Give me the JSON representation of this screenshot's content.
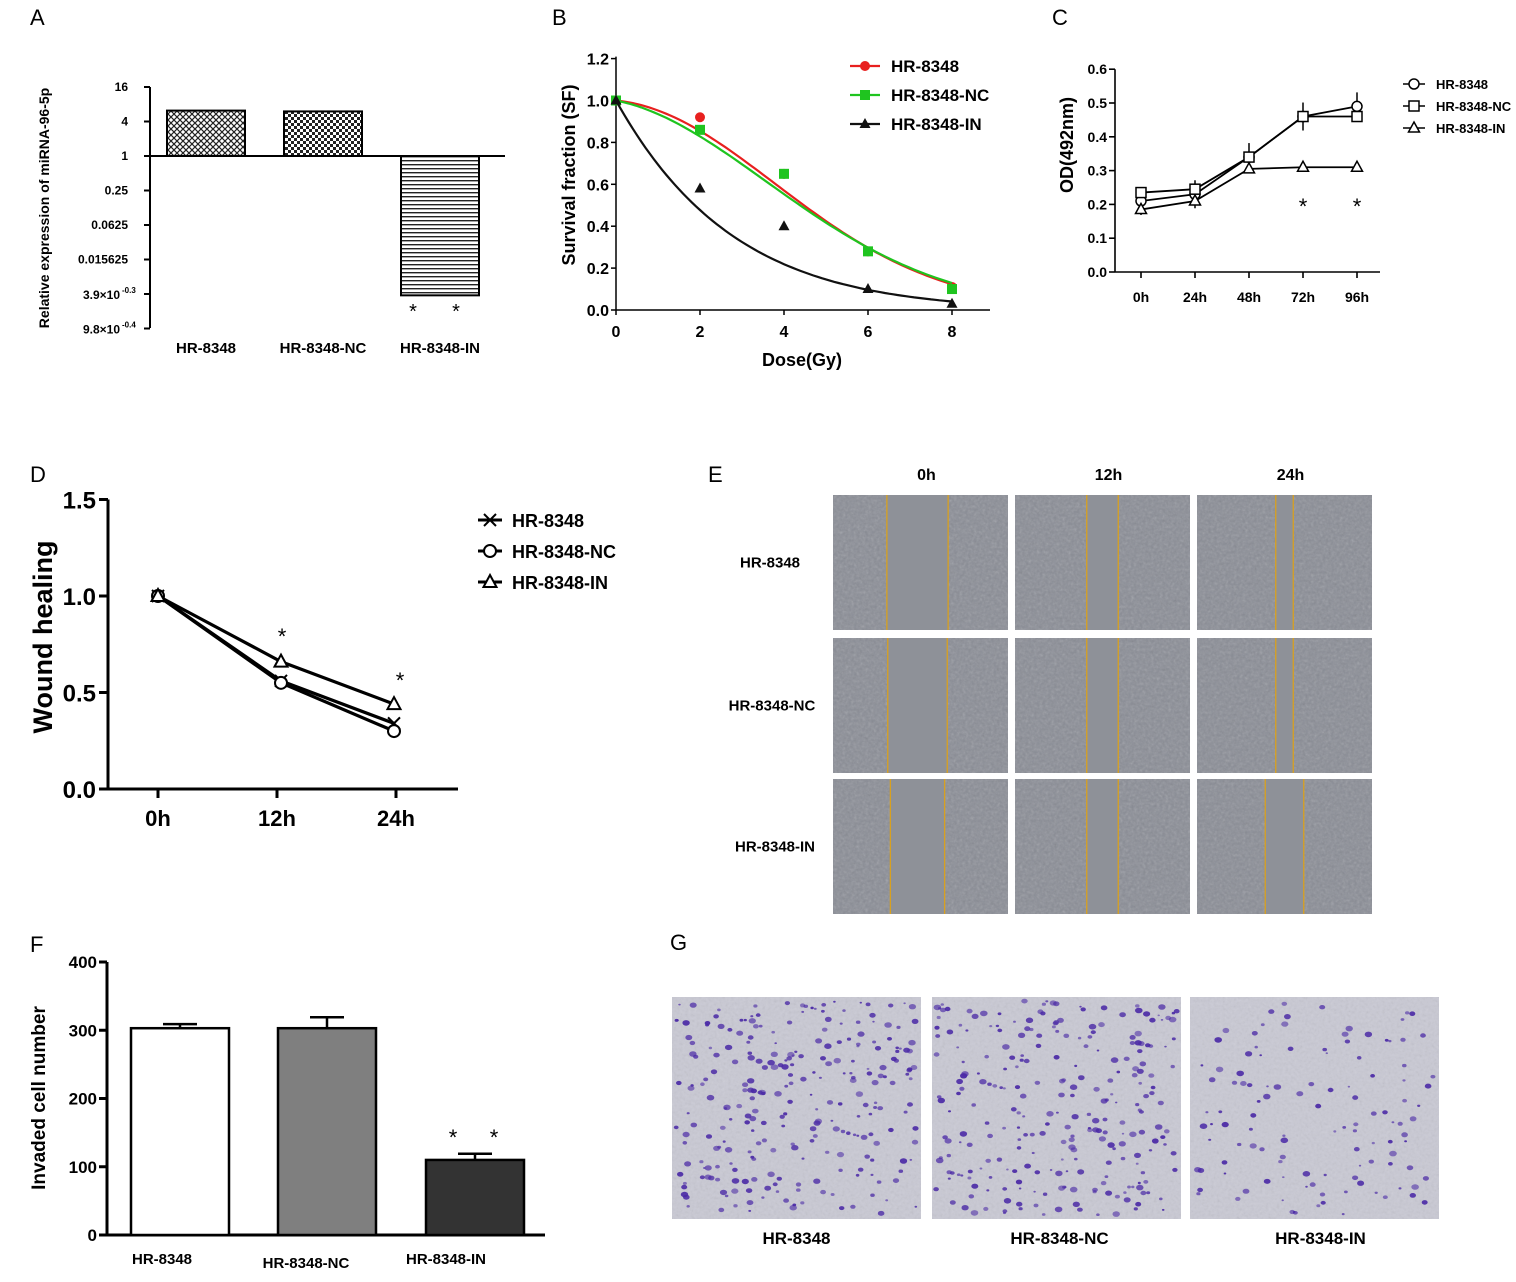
{
  "panel_letters": {
    "A": "A",
    "B": "B",
    "C": "C",
    "D": "D",
    "E": "E",
    "F": "F",
    "G": "G"
  },
  "colors": {
    "red": "#e8201f",
    "green": "#1fc41f",
    "black": "#111111",
    "gray_bar": "#7f7f7f",
    "dark_bar": "#333333",
    "scratch_line": "#d8a020",
    "micro_bg": "#8a8d96",
    "stain": "#4b2aa6"
  },
  "chart_data": [
    {
      "panel": "A",
      "type": "bar",
      "categories": [
        "HR-8348",
        "HR-8348-NC",
        "HR-8348-IN"
      ],
      "values": [
        6.2,
        6.0,
        0.0037
      ],
      "yscale": "log2",
      "yticks": [
        "16",
        "4",
        "1",
        "0.25",
        "0.0625",
        "0.015625",
        "3.9×10",
        "9.8×10"
      ],
      "ytick_sups": [
        "-0.3",
        "-0.4"
      ],
      "ylabel": "Relative expression of miRNA-96-5p",
      "annotations": [
        "*",
        "*"
      ]
    },
    {
      "panel": "B",
      "type": "line",
      "x": [
        0,
        2,
        4,
        6,
        8
      ],
      "series": [
        {
          "name": "HR-8348",
          "values": [
            1.0,
            0.92,
            0.65,
            0.28,
            0.11
          ]
        },
        {
          "name": "HR-8348-NC",
          "values": [
            1.0,
            0.86,
            0.65,
            0.28,
            0.1
          ]
        },
        {
          "name": "HR-8348-IN",
          "values": [
            1.0,
            0.58,
            0.4,
            0.1,
            0.03
          ]
        }
      ],
      "xlabel": "Dose(Gy)",
      "ylabel": "Survival fraction (SF)",
      "xticks": [
        "0",
        "2",
        "4",
        "6",
        "8"
      ],
      "yticks": [
        "0.0",
        "0.2",
        "0.4",
        "0.6",
        "0.8",
        "1.0",
        "1.2"
      ],
      "ylim": [
        0,
        1.2
      ]
    },
    {
      "panel": "C",
      "type": "line",
      "categories": [
        "0h",
        "24h",
        "48h",
        "72h",
        "96h"
      ],
      "series": [
        {
          "name": "HR-8348",
          "values": [
            0.21,
            0.23,
            0.34,
            0.46,
            0.49
          ]
        },
        {
          "name": "HR-8348-NC",
          "values": [
            0.235,
            0.245,
            0.34,
            0.46,
            0.46
          ]
        },
        {
          "name": "HR-8348-IN",
          "values": [
            0.185,
            0.21,
            0.305,
            0.31,
            0.31
          ]
        }
      ],
      "ylabel": "OD(492nm)",
      "yticks": [
        "0.0",
        "0.1",
        "0.2",
        "0.3",
        "0.4",
        "0.5",
        "0.6"
      ],
      "ylim": [
        0,
        0.6
      ],
      "annotations": [
        "*",
        "*"
      ]
    },
    {
      "panel": "D",
      "type": "line",
      "categories": [
        "0h",
        "12h",
        "24h"
      ],
      "series": [
        {
          "name": "HR-8348",
          "values": [
            1.0,
            0.56,
            0.34
          ]
        },
        {
          "name": "HR-8348-NC",
          "values": [
            1.0,
            0.55,
            0.3
          ]
        },
        {
          "name": "HR-8348-IN",
          "values": [
            1.0,
            0.66,
            0.44
          ]
        }
      ],
      "ylabel": "Wound healing",
      "yticks": [
        "0.0",
        "0.5",
        "1.0",
        "1.5"
      ],
      "ylim": [
        0,
        1.5
      ],
      "annotations": [
        "*",
        "*"
      ]
    },
    {
      "panel": "F",
      "type": "bar",
      "categories": [
        "HR-8348",
        "HR-8348-NC",
        "HR-8348-IN"
      ],
      "values": [
        303,
        303,
        110
      ],
      "errors": [
        6,
        16,
        9
      ],
      "ylabel": "Invaded cell number",
      "yticks": [
        "0",
        "100",
        "200",
        "300",
        "400"
      ],
      "ylim": [
        0,
        400
      ],
      "annotations": [
        "*",
        "*"
      ]
    }
  ],
  "panel_E": {
    "columns": [
      "0h",
      "12h",
      "24h"
    ],
    "rows": [
      "HR-8348",
      "HR-8348-NC",
      "HR-8348-IN"
    ],
    "gap_fraction": [
      [
        0.35,
        0.18,
        0.1
      ],
      [
        0.34,
        0.18,
        0.1
      ],
      [
        0.31,
        0.18,
        0.22
      ]
    ]
  },
  "panel_G": {
    "labels": [
      "HR-8348",
      "HR-8348-NC",
      "HR-8348-IN"
    ],
    "stain_density": [
      1.0,
      1.0,
      0.45
    ]
  }
}
